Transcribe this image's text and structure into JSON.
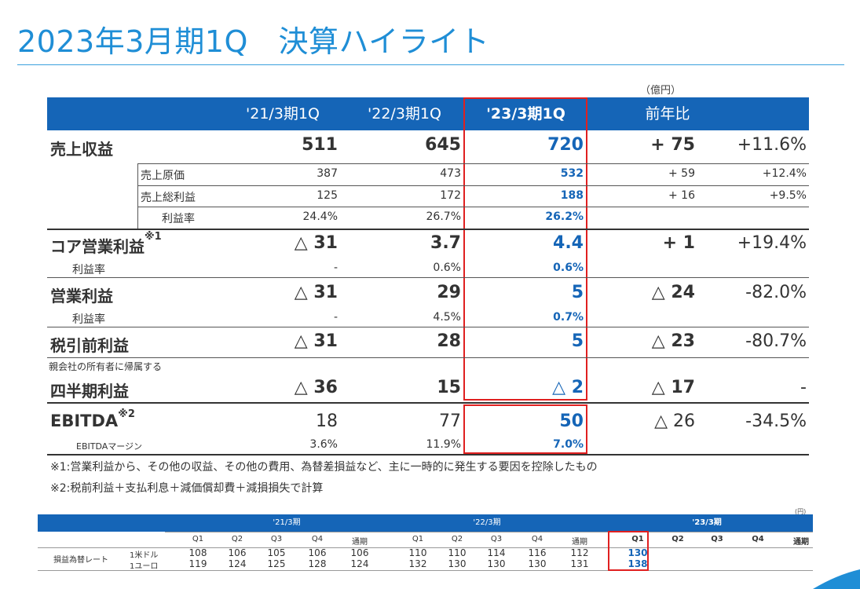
{
  "page": {
    "title": "2023年3月期1Q　決算ハイライト",
    "unit": "（億円）"
  },
  "header": {
    "col1": "'21/3期1Q",
    "col2": "'22/3期1Q",
    "col3": "'23/3期1Q",
    "col4": "前年比"
  },
  "rows": {
    "sales": {
      "label": "売上収益",
      "v1": "511",
      "v2": "645",
      "v3": "720",
      "diff": "+ 75",
      "pct": "+11.6%"
    },
    "cogs": {
      "label": "売上原価",
      "v1": "387",
      "v2": "473",
      "v3": "532",
      "diff": "+ 59",
      "pct": "+12.4%"
    },
    "gross": {
      "label": "売上総利益",
      "v1": "125",
      "v2": "172",
      "v3": "188",
      "diff": "+ 16",
      "pct": "+9.5%"
    },
    "gross_margin": {
      "label": "利益率",
      "v1": "24.4%",
      "v2": "26.7%",
      "v3": "26.2%"
    },
    "core": {
      "label": "コア営業利益",
      "sup": "※1",
      "v1": "△ 31",
      "v2": "3.7",
      "v3": "4.4",
      "diff": "+ 1",
      "pct": "+19.4%"
    },
    "core_margin": {
      "label": "利益率",
      "v1": "-",
      "v2": "0.6%",
      "v3": "0.6%"
    },
    "op": {
      "label": "営業利益",
      "v1": "△ 31",
      "v2": "29",
      "v3": "5",
      "diff": "△ 24",
      "pct": "-82.0%"
    },
    "op_margin": {
      "label": "利益率",
      "v1": "-",
      "v2": "4.5%",
      "v3": "0.7%"
    },
    "pretax": {
      "label": "税引前利益",
      "v1": "△ 31",
      "v2": "28",
      "v3": "5",
      "diff": "△ 23",
      "pct": "-80.7%"
    },
    "net_prefix": "親会社の所有者に帰属する",
    "net": {
      "label": "四半期利益",
      "v1": "△ 36",
      "v2": "15",
      "v3": "△ 2",
      "diff": "△ 17",
      "pct": "-"
    },
    "ebitda": {
      "label": "EBITDA",
      "sup": "※2",
      "v1": "18",
      "v2": "77",
      "v3": "50",
      "diff": "△ 26",
      "pct": "-34.5%"
    },
    "ebitda_margin": {
      "label": "EBITDAマージン",
      "v1": "3.6%",
      "v2": "11.9%",
      "v3": "7.0%"
    }
  },
  "notes": {
    "n1": "※1:営業利益から、その他の収益、その他の費用、為替差損益など、主に一時的に発生する要因を控除したもの",
    "n2": "※2:税前利益＋支払利息＋減価償却費＋減損損失で計算"
  },
  "fx_table": {
    "unit": "(円)",
    "periods": [
      "'21/3期",
      "'22/3期",
      "'23/3期"
    ],
    "quarters": [
      "Q1",
      "Q2",
      "Q3",
      "Q4",
      "通期"
    ],
    "row_label": "損益為替レート",
    "usd_label": "1米ドル",
    "eur_label": "1ユーロ",
    "usd": [
      "108",
      "106",
      "105",
      "106",
      "106",
      "110",
      "110",
      "114",
      "116",
      "112",
      "130"
    ],
    "eur": [
      "119",
      "124",
      "125",
      "128",
      "124",
      "132",
      "130",
      "130",
      "130",
      "131",
      "138"
    ]
  }
}
